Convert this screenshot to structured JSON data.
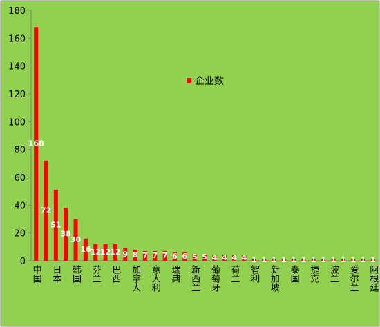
{
  "chart_data": {
    "type": "bar",
    "categories": [
      "中国",
      null,
      "日本",
      null,
      "韩国",
      null,
      "芬兰",
      null,
      "巴西",
      null,
      "加拿大",
      null,
      "意大利",
      null,
      "瑞典",
      null,
      "新西兰",
      null,
      "葡萄牙",
      null,
      "荷兰",
      null,
      "智利",
      null,
      "新加坡",
      null,
      "泰国",
      null,
      "捷克",
      null,
      "波兰",
      null,
      "爱尔兰",
      null,
      "阿根廷"
    ],
    "series": [
      {
        "name": "企业数",
        "color": "#ff0000",
        "values": [
          168,
          72,
          51,
          38,
          30,
          16,
          12,
          12,
          12,
          9,
          8,
          7,
          7,
          7,
          6,
          6,
          5,
          5,
          4,
          4,
          4,
          4,
          1,
          1,
          1,
          1,
          1,
          1,
          1,
          1,
          1,
          1,
          1,
          1,
          1
        ]
      }
    ],
    "ylim": [
      0,
      180
    ],
    "yticks": [
      0,
      20,
      40,
      60,
      80,
      100,
      120,
      140,
      160,
      180
    ],
    "grid": false
  }
}
